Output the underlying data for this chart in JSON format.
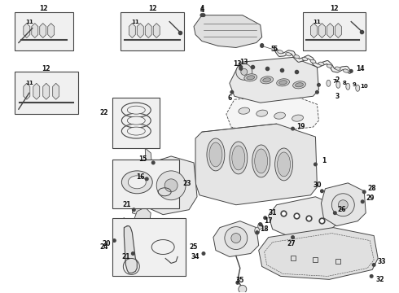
{
  "bg_color": "#ffffff",
  "line_color": "#444444",
  "fill_light": "#f0f0f0",
  "fill_med": "#e0e0e0",
  "fill_dark": "#cccccc",
  "fig_width": 4.9,
  "fig_height": 3.6,
  "dpi": 100
}
